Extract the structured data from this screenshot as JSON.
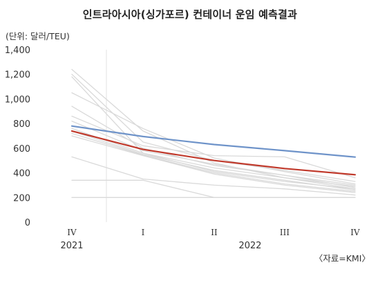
{
  "chart_data": {
    "type": "line",
    "title": "인트라아시아(싱가포르) 컨테이너 운임 예측결과",
    "unit_label": "(단위: 달러/TEU)",
    "source": "〈자료=KMI〉",
    "x": [
      "IV",
      "I",
      "II",
      "III",
      "IV"
    ],
    "year_labels": [
      "2021",
      "2022"
    ],
    "yticks": [
      "1,400",
      "1,200",
      "1,000",
      "800",
      "600",
      "400",
      "200",
      "0"
    ],
    "ylim": [
      0,
      1400
    ],
    "grid": false,
    "series": [
      {
        "values": [
          780,
          695,
          630,
          580,
          528
        ],
        "color": "#6e93c9",
        "role": "highlight-blue"
      },
      {
        "values": [
          740,
          590,
          500,
          435,
          385
        ],
        "color": "#c0392b",
        "role": "highlight-red"
      },
      {
        "values": [
          1240,
          740,
          480,
          360,
          290
        ],
        "color": "#d9d9d9",
        "role": "scenario"
      },
      {
        "values": [
          1200,
          650,
          500,
          420,
          330
        ],
        "color": "#d9d9d9",
        "role": "scenario"
      },
      {
        "values": [
          1180,
          560,
          410,
          330,
          270
        ],
        "color": "#d9d9d9",
        "role": "scenario"
      },
      {
        "values": [
          1050,
          760,
          520,
          410,
          310
        ],
        "color": "#d9d9d9",
        "role": "scenario"
      },
      {
        "values": [
          940,
          600,
          460,
          380,
          300
        ],
        "color": "#d9d9d9",
        "role": "scenario"
      },
      {
        "values": [
          860,
          620,
          540,
          530,
          360
        ],
        "color": "#d9d9d9",
        "role": "scenario"
      },
      {
        "values": [
          820,
          580,
          470,
          380,
          280
        ],
        "color": "#d9d9d9",
        "role": "scenario"
      },
      {
        "values": [
          760,
          560,
          440,
          360,
          270
        ],
        "color": "#d9d9d9",
        "role": "scenario"
      },
      {
        "values": [
          740,
          550,
          420,
          340,
          260
        ],
        "color": "#d9d9d9",
        "role": "scenario"
      },
      {
        "values": [
          720,
          545,
          400,
          310,
          250
        ],
        "color": "#d9d9d9",
        "role": "scenario"
      },
      {
        "values": [
          700,
          540,
          390,
          300,
          240
        ],
        "color": "#d9d9d9",
        "role": "scenario"
      },
      {
        "values": [
          530,
          350,
          300,
          270,
          220
        ],
        "color": "#d9d9d9",
        "role": "scenario"
      },
      {
        "values": [
          340,
          340,
          200,
          200,
          200
        ],
        "color": "#d9d9d9",
        "role": "scenario"
      },
      {
        "values": [
          200,
          200,
          200,
          200,
          200
        ],
        "color": "#d9d9d9",
        "role": "scenario"
      }
    ]
  }
}
